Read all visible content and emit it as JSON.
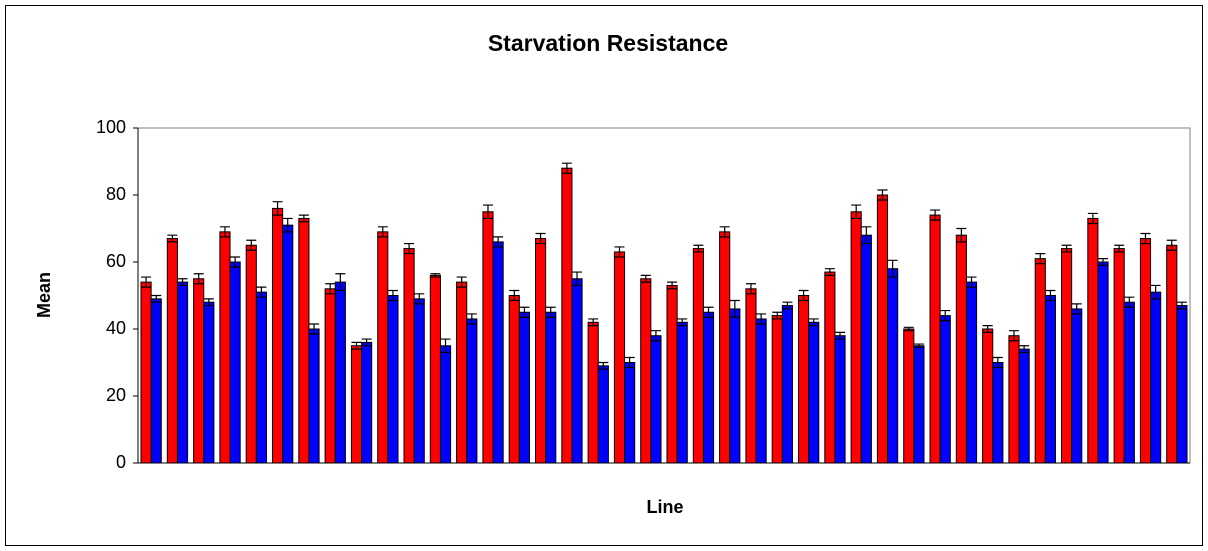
{
  "chart_data": {
    "type": "bar",
    "title": "Starvation Resistance",
    "x_label": "Line",
    "y_label": "Mean",
    "categories": [
      null,
      null,
      null,
      null,
      null,
      null,
      null,
      null,
      null,
      null,
      null,
      null,
      null,
      null,
      null,
      null,
      null,
      null,
      null,
      null,
      null,
      null,
      null,
      null,
      null,
      null,
      null,
      null,
      null,
      null,
      null,
      null,
      null,
      null,
      null,
      null,
      null,
      null,
      null,
      null
    ],
    "series": [
      {
        "color": "#ff0000",
        "values": [
          54,
          67,
          55,
          69,
          65,
          76,
          73,
          52,
          35,
          69,
          64,
          56,
          54,
          75,
          50,
          67,
          88,
          42,
          63,
          55,
          53,
          64,
          69,
          52,
          44,
          50,
          57,
          75,
          80,
          40,
          74,
          68,
          40,
          38,
          61,
          64,
          73,
          64,
          67,
          65
        ],
        "errors": [
          1.5,
          1,
          1.5,
          1.5,
          1.5,
          2,
          1,
          1.5,
          1,
          1.5,
          1.5,
          0.5,
          1.5,
          2,
          1.5,
          1.5,
          1.5,
          1,
          1.5,
          1,
          1,
          1,
          1.5,
          1.5,
          1,
          1.5,
          1,
          2,
          1.5,
          0.5,
          1.5,
          2,
          1,
          1.5,
          1.5,
          1,
          1.5,
          1,
          1.5,
          1.5
        ]
      },
      {
        "color": "#0000ff",
        "values": [
          49,
          54,
          48,
          60,
          51,
          71,
          40,
          54,
          36,
          50,
          49,
          35,
          43,
          66,
          45,
          45,
          55,
          29,
          30,
          38,
          42,
          45,
          46,
          43,
          47,
          42,
          38,
          68,
          58,
          35,
          44,
          54,
          30,
          34,
          50,
          46,
          60,
          48,
          51,
          47
        ],
        "errors": [
          1,
          1,
          1,
          1.5,
          1.5,
          2,
          1.5,
          2.5,
          1,
          1.5,
          1.5,
          2,
          1.5,
          1.5,
          1.5,
          1.5,
          2,
          1,
          1.5,
          1.5,
          1,
          1.5,
          2.5,
          1.5,
          1,
          1,
          1,
          2.5,
          2.5,
          0.5,
          1.5,
          1.5,
          1.5,
          1,
          1.5,
          1.5,
          1,
          1.5,
          2,
          1
        ]
      }
    ],
    "ylim": [
      0,
      100
    ],
    "yticks": [
      0,
      20,
      40,
      60,
      80,
      100
    ],
    "grid": false
  }
}
